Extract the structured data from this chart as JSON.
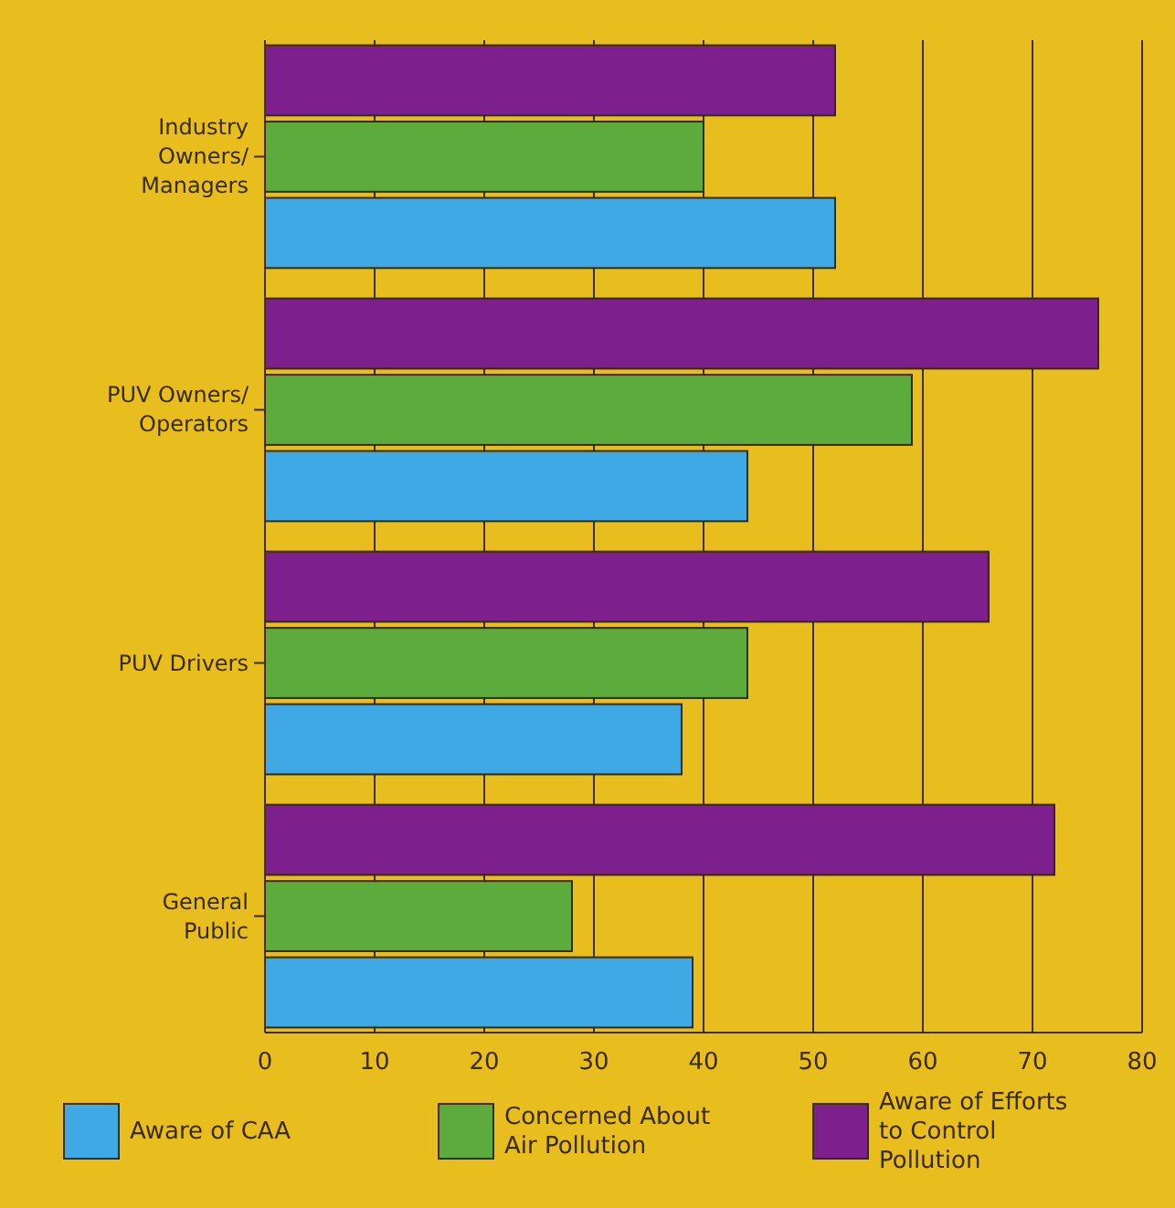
{
  "chart_data": {
    "type": "bar",
    "orientation": "horizontal",
    "categories": [
      "Industry Owners/ Managers",
      "PUV Owners/ Operators",
      "PUV Drivers",
      "General Public"
    ],
    "series": [
      {
        "name": "Aware of CAA",
        "color": "#3fa9e6",
        "values": [
          52,
          44,
          38,
          39
        ]
      },
      {
        "name": "Concerned About Air Pollution",
        "color": "#5cab3c",
        "values": [
          40,
          59,
          44,
          28
        ]
      },
      {
        "name": "Aware of Efforts to Control Pollution",
        "color": "#7d1f8c",
        "values": [
          52,
          76,
          66,
          72
        ]
      }
    ],
    "xlim": [
      0,
      80
    ],
    "xticks": [
      0,
      10,
      20,
      30,
      40,
      50,
      60,
      70,
      80
    ],
    "grid": "x",
    "legend": "bottom"
  }
}
